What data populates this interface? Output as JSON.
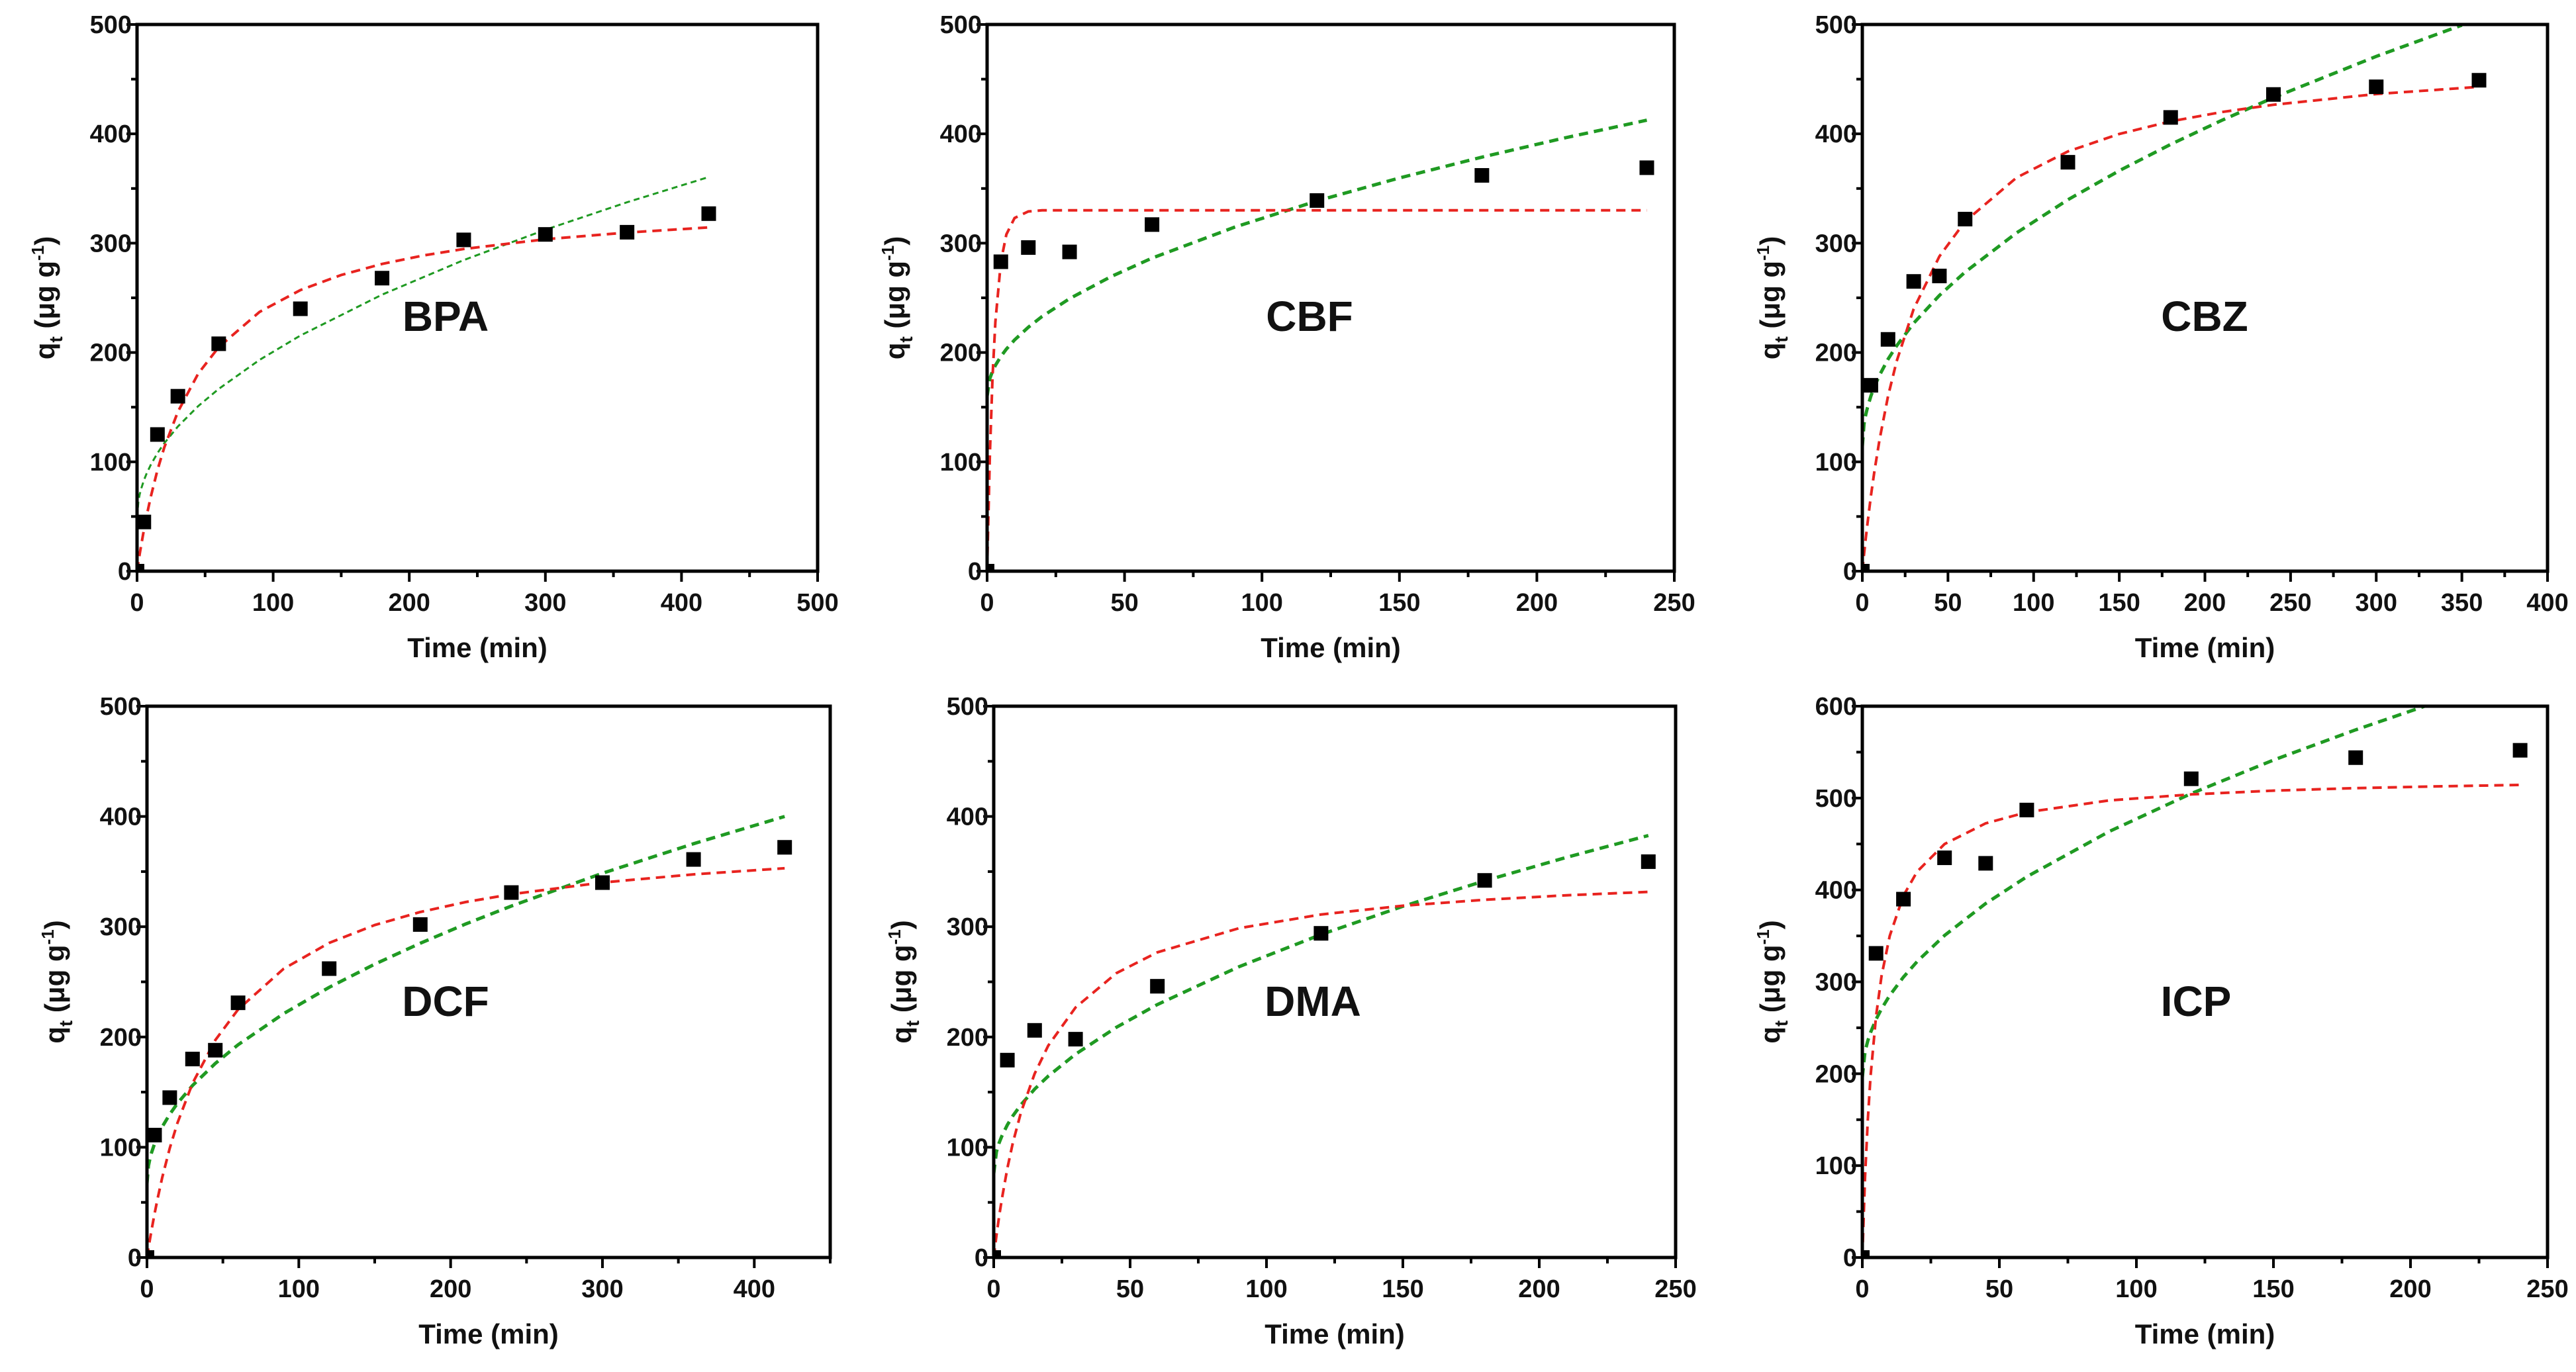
{
  "colors": {
    "model_red": "#e8231f",
    "model_green": "#1f9a22",
    "markers": "#000000",
    "axes": "#000000"
  },
  "chart_data": [
    {
      "type": "scatter",
      "title": "BPA",
      "xlabel": "Time (min)",
      "ylabel": {
        "q": "q",
        "sub": "t",
        "unit": " (μg g",
        "sup": "-1",
        "close": ")"
      },
      "xlim": [
        0,
        500
      ],
      "ylim": [
        0,
        500
      ],
      "xticks": [
        0,
        100,
        200,
        300,
        400,
        500
      ],
      "yticks": [
        0,
        100,
        200,
        300,
        400,
        500
      ],
      "points": {
        "x": [
          0,
          5,
          15,
          30,
          60,
          120,
          180,
          240,
          300,
          360,
          420
        ],
        "y": [
          0,
          45,
          125,
          160,
          208,
          240,
          268,
          303,
          308,
          310,
          327
        ]
      },
      "fit_red": {
        "x": [
          0,
          1,
          2,
          3,
          5,
          7,
          10,
          15,
          20,
          30,
          45,
          60,
          90,
          120,
          150,
          180,
          210,
          240,
          300,
          360,
          420
        ],
        "y": [
          0,
          8.2,
          16.1,
          23.5,
          37.6,
          50.3,
          67.7,
          92.4,
          113.1,
          145.8,
          180.8,
          204.9,
          237.1,
          257.1,
          270.9,
          281,
          288.7,
          294.7,
          303.6,
          309.7,
          314.4
        ]
      },
      "fit_green": {
        "x": [
          0,
          1,
          2,
          3,
          5,
          7,
          10,
          15,
          20,
          30,
          45,
          60,
          90,
          120,
          180,
          240,
          300,
          360,
          420
        ],
        "y": [
          49,
          64.2,
          70.5,
          75.3,
          83,
          89.2,
          97.1,
          107.9,
          117,
          132.3,
          151,
          166.7,
          193.2,
          215.5,
          252.9,
          284.5,
          312.3,
          337.4,
          360.5
        ]
      }
    },
    {
      "type": "scatter",
      "title": "CBF",
      "xlabel": "Time (min)",
      "ylabel": {
        "q": "q",
        "sub": "t",
        "unit": " (μg g",
        "sup": "-1",
        "close": ")"
      },
      "xlim": [
        0,
        250
      ],
      "ylim": [
        0,
        500
      ],
      "xticks": [
        0,
        50,
        100,
        150,
        200,
        250
      ],
      "yticks": [
        0,
        100,
        200,
        300,
        400,
        500
      ],
      "points": {
        "x": [
          0,
          5,
          15,
          30,
          60,
          120,
          180,
          240
        ],
        "y": [
          0,
          283,
          296,
          292,
          317,
          339,
          362,
          369
        ]
      },
      "fit_red": {
        "x": [
          0,
          1,
          2,
          3,
          5,
          7,
          10,
          15,
          20,
          30,
          45,
          60,
          90,
          120,
          150,
          180,
          210,
          240
        ],
        "y": [
          0,
          107,
          179,
          228,
          283,
          308,
          323,
          329,
          330,
          330,
          330,
          330,
          330,
          330,
          330,
          330,
          330,
          330
        ]
      },
      "fit_green": {
        "x": [
          0,
          1,
          2,
          3,
          5,
          7,
          10,
          15,
          20,
          30,
          45,
          60,
          90,
          120,
          150,
          180,
          210,
          240
        ],
        "y": [
          160,
          176.3,
          183.1,
          188.2,
          196.4,
          203.1,
          211.5,
          223.1,
          232.9,
          249.3,
          269.3,
          286.3,
          314.6,
          338.6,
          359.6,
          378.7,
          396.2,
          412.5
        ]
      }
    },
    {
      "type": "scatter",
      "title": "CBZ",
      "xlabel": "Time (min)",
      "ylabel": {
        "q": "q",
        "sub": "t",
        "unit": " (μg g",
        "sup": "-1",
        "close": ")"
      },
      "xlim": [
        0,
        400
      ],
      "ylim": [
        0,
        500
      ],
      "xticks": [
        0,
        50,
        100,
        150,
        200,
        250,
        300,
        350,
        400
      ],
      "yticks": [
        0,
        100,
        200,
        300,
        400,
        500
      ],
      "points": {
        "x": [
          0,
          5,
          15,
          30,
          45,
          60,
          120,
          180,
          240,
          300,
          360
        ],
        "y": [
          0,
          170,
          212,
          265,
          270,
          322,
          374,
          415,
          436,
          443,
          449
        ]
      },
      "fit_red": {
        "x": [
          0,
          1,
          2,
          3,
          5,
          7,
          10,
          15,
          20,
          30,
          45,
          60,
          90,
          120,
          150,
          180,
          210,
          240,
          300,
          360
        ],
        "y": [
          0,
          15.5,
          30,
          43.6,
          68.5,
          90.7,
          119.9,
          159.9,
          191.9,
          239.9,
          287.9,
          319.9,
          359.9,
          383.9,
          399.9,
          411.4,
          420,
          426.6,
          436.4,
          443
        ]
      },
      "fit_green": {
        "x": [
          0,
          1,
          2,
          3,
          5,
          7,
          10,
          15,
          20,
          30,
          45,
          60,
          90,
          120,
          150,
          180,
          210,
          240,
          300,
          350
        ],
        "y": [
          114,
          134.6,
          143.1,
          149.7,
          160.1,
          168.5,
          179.1,
          193.8,
          206.1,
          226.8,
          252.2,
          273.6,
          309.4,
          339.7,
          366.3,
          390.4,
          412.5,
          433.1,
          470.8,
          499.4
        ]
      }
    },
    {
      "type": "scatter",
      "title": "DCF",
      "xlabel": "Time (min)",
      "ylabel": {
        "q": "q",
        "sub": "t",
        "unit": " (μg g",
        "sup": "-1",
        "close": ")"
      },
      "xlim": [
        0,
        450
      ],
      "ylim": [
        0,
        500
      ],
      "xticks": [
        0,
        100,
        200,
        300,
        400
      ],
      "yticks": [
        0,
        100,
        200,
        300,
        400,
        500
      ],
      "points": {
        "x": [
          0,
          5,
          15,
          30,
          45,
          60,
          120,
          180,
          240,
          300,
          360,
          420
        ],
        "y": [
          0,
          111,
          145,
          180,
          188,
          231,
          262,
          302,
          331,
          340,
          361,
          372
        ]
      },
      "fit_red": {
        "x": [
          0,
          1,
          2,
          3,
          5,
          7,
          10,
          15,
          20,
          30,
          45,
          60,
          90,
          120,
          150,
          180,
          210,
          240,
          300,
          360,
          420
        ],
        "y": [
          0,
          8.7,
          16.9,
          24.9,
          39.8,
          53.5,
          72.2,
          99.1,
          121.8,
          158,
          197.1,
          224.9,
          261.8,
          285.3,
          301.5,
          313.3,
          322.4,
          329.5,
          340.1,
          347.5,
          353
        ]
      },
      "fit_green": {
        "x": [
          0,
          1,
          2,
          3,
          5,
          7,
          10,
          15,
          20,
          30,
          45,
          60,
          90,
          120,
          150,
          180,
          210,
          240,
          300,
          360,
          420
        ],
        "y": [
          67,
          83.3,
          90,
          95.1,
          103.3,
          110,
          118.4,
          129.9,
          139.7,
          156,
          176,
          192.9,
          221.2,
          245,
          266,
          285,
          302.5,
          318.7,
          348.5,
          375.3,
          400
        ]
      }
    },
    {
      "type": "scatter",
      "title": "DMA",
      "xlabel": "Time (min)",
      "ylabel": {
        "q": "q",
        "sub": "t",
        "unit": " (μg g",
        "sup": "-1",
        "close": ")"
      },
      "xlim": [
        0,
        250
      ],
      "ylim": [
        0,
        500
      ],
      "xticks": [
        0,
        50,
        100,
        150,
        200,
        250
      ],
      "yticks": [
        0,
        100,
        200,
        300,
        400,
        500
      ],
      "points": {
        "x": [
          0,
          5,
          15,
          30,
          60,
          120,
          180,
          240
        ],
        "y": [
          0,
          179,
          206,
          198,
          246,
          294,
          342,
          359
        ]
      },
      "fit_red": {
        "x": [
          0,
          1,
          2,
          3,
          5,
          7,
          10,
          15,
          20,
          30,
          45,
          60,
          90,
          120,
          150,
          180,
          210,
          240
        ],
        "y": [
          0,
          19.8,
          37.5,
          53.4,
          80.9,
          103.8,
          131.7,
          166.7,
          192.2,
          226.8,
          257.9,
          276.8,
          298.7,
          311.1,
          319,
          324.4,
          328.5,
          331.6
        ]
      },
      "fit_green": {
        "x": [
          0,
          1,
          2,
          3,
          5,
          7,
          10,
          15,
          20,
          30,
          45,
          60,
          90,
          120,
          150,
          180,
          210,
          240
        ],
        "y": [
          76,
          95.8,
          104,
          110.3,
          120.3,
          128.4,
          138.6,
          152.7,
          164.5,
          184.4,
          208.8,
          229.4,
          263.8,
          292.9,
          318.5,
          341.6,
          362.9,
          382.7
        ]
      }
    },
    {
      "type": "scatter",
      "title": "ICP",
      "xlabel": "Time (min)",
      "ylabel": {
        "q": "q",
        "sub": "t",
        "unit": " (μg g",
        "sup": "-1",
        "close": ")"
      },
      "xlim": [
        0,
        250
      ],
      "ylim": [
        0,
        600
      ],
      "xticks": [
        0,
        50,
        100,
        150,
        200,
        250
      ],
      "yticks": [
        0,
        100,
        200,
        300,
        400,
        500,
        600
      ],
      "points": {
        "x": [
          0,
          5,
          15,
          30,
          45,
          60,
          120,
          180,
          240
        ],
        "y": [
          0,
          331,
          390,
          435,
          429,
          487,
          521,
          544,
          552
        ]
      },
      "fit_red": {
        "x": [
          0,
          1,
          2,
          3,
          5,
          7,
          10,
          15,
          20,
          30,
          45,
          60,
          90,
          120,
          150,
          180,
          210,
          240
        ],
        "y": [
          0,
          87.5,
          150,
          196.9,
          262.5,
          306.3,
          350,
          393.8,
          420,
          450,
          472.5,
          484.6,
          497.4,
          504,
          508.1,
          510.8,
          512.8,
          514.3
        ]
      },
      "fit_green": {
        "x": [
          0,
          1,
          2,
          3,
          5,
          7,
          10,
          15,
          20,
          30,
          45,
          60,
          90,
          120,
          150,
          180,
          205
        ],
        "y": [
          196,
          224.2,
          235.9,
          244.8,
          259.1,
          270.6,
          285.2,
          305.2,
          322.1,
          350.5,
          385.2,
          414.4,
          463.5,
          504.9,
          541.4,
          574.3,
          599.8
        ]
      }
    }
  ]
}
